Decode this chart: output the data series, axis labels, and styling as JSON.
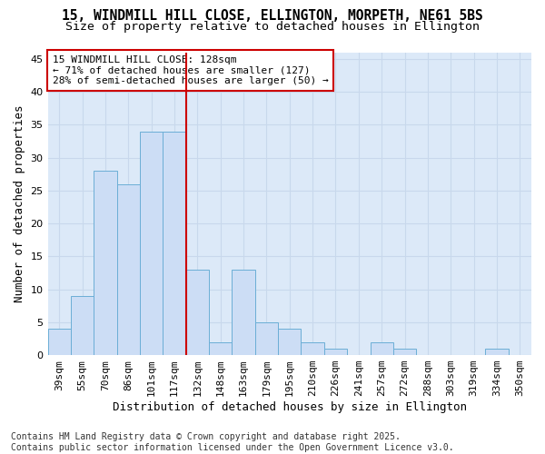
{
  "title1": "15, WINDMILL HILL CLOSE, ELLINGTON, MORPETH, NE61 5BS",
  "title2": "Size of property relative to detached houses in Ellington",
  "xlabel": "Distribution of detached houses by size in Ellington",
  "ylabel": "Number of detached properties",
  "categories": [
    "39sqm",
    "55sqm",
    "70sqm",
    "86sqm",
    "101sqm",
    "117sqm",
    "132sqm",
    "148sqm",
    "163sqm",
    "179sqm",
    "195sqm",
    "210sqm",
    "226sqm",
    "241sqm",
    "257sqm",
    "272sqm",
    "288sqm",
    "303sqm",
    "319sqm",
    "334sqm",
    "350sqm"
  ],
  "values": [
    4,
    9,
    28,
    26,
    34,
    34,
    13,
    2,
    13,
    5,
    4,
    2,
    1,
    0,
    2,
    1,
    0,
    0,
    0,
    1,
    0
  ],
  "bar_color": "#ccddf5",
  "bar_edge_color": "#6baed6",
  "grid_color": "#c8d8ec",
  "background_color": "#dce9f8",
  "vline_x": 6.0,
  "vline_color": "#cc0000",
  "annotation_line1": "15 WINDMILL HILL CLOSE: 128sqm",
  "annotation_line2": "← 71% of detached houses are smaller (127)",
  "annotation_line3": "28% of semi-detached houses are larger (50) →",
  "annotation_box_color": "#ffffff",
  "annotation_box_edge": "#cc0000",
  "ylim": [
    0,
    46
  ],
  "yticks": [
    0,
    5,
    10,
    15,
    20,
    25,
    30,
    35,
    40,
    45
  ],
  "footer": "Contains HM Land Registry data © Crown copyright and database right 2025.\nContains public sector information licensed under the Open Government Licence v3.0.",
  "title_fontsize": 10.5,
  "subtitle_fontsize": 9.5,
  "axis_label_fontsize": 9,
  "tick_fontsize": 8,
  "annotation_fontsize": 8,
  "footer_fontsize": 7
}
